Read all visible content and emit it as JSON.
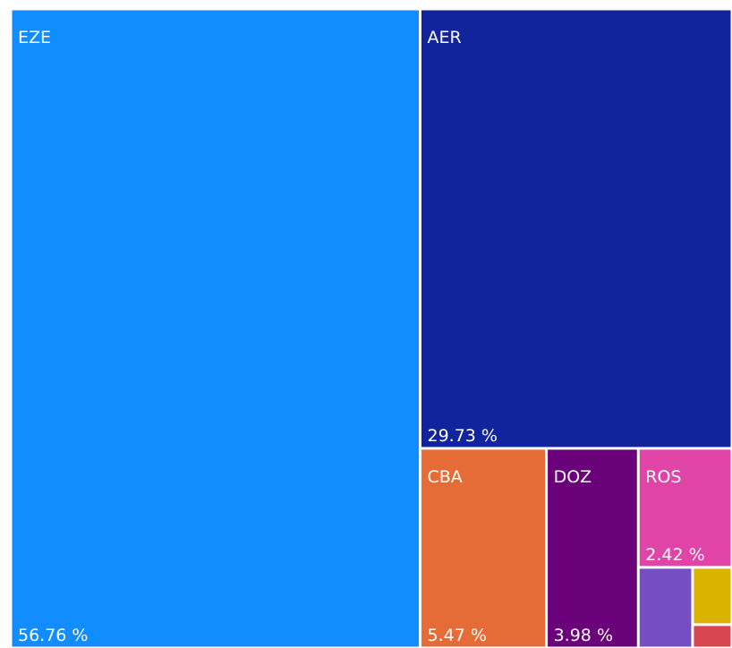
{
  "chart_data": {
    "type": "treemap",
    "categories": [
      "EZE",
      "AER",
      "CBA",
      "DOZ",
      "ROS",
      null,
      null,
      null
    ],
    "values": [
      56.76,
      29.73,
      5.47,
      3.98,
      2.42,
      0.95,
      0.49,
      0.2
    ],
    "value_labels": [
      "56.76 %",
      "29.73 %",
      "5.47 %",
      "3.98 %",
      "2.42 %",
      null,
      null,
      null
    ],
    "colors": [
      "#118DFF",
      "#12239E",
      "#E66C37",
      "#6B007B",
      "#E044A7",
      "#744EC2",
      "#D9B300",
      "#D64550"
    ]
  }
}
